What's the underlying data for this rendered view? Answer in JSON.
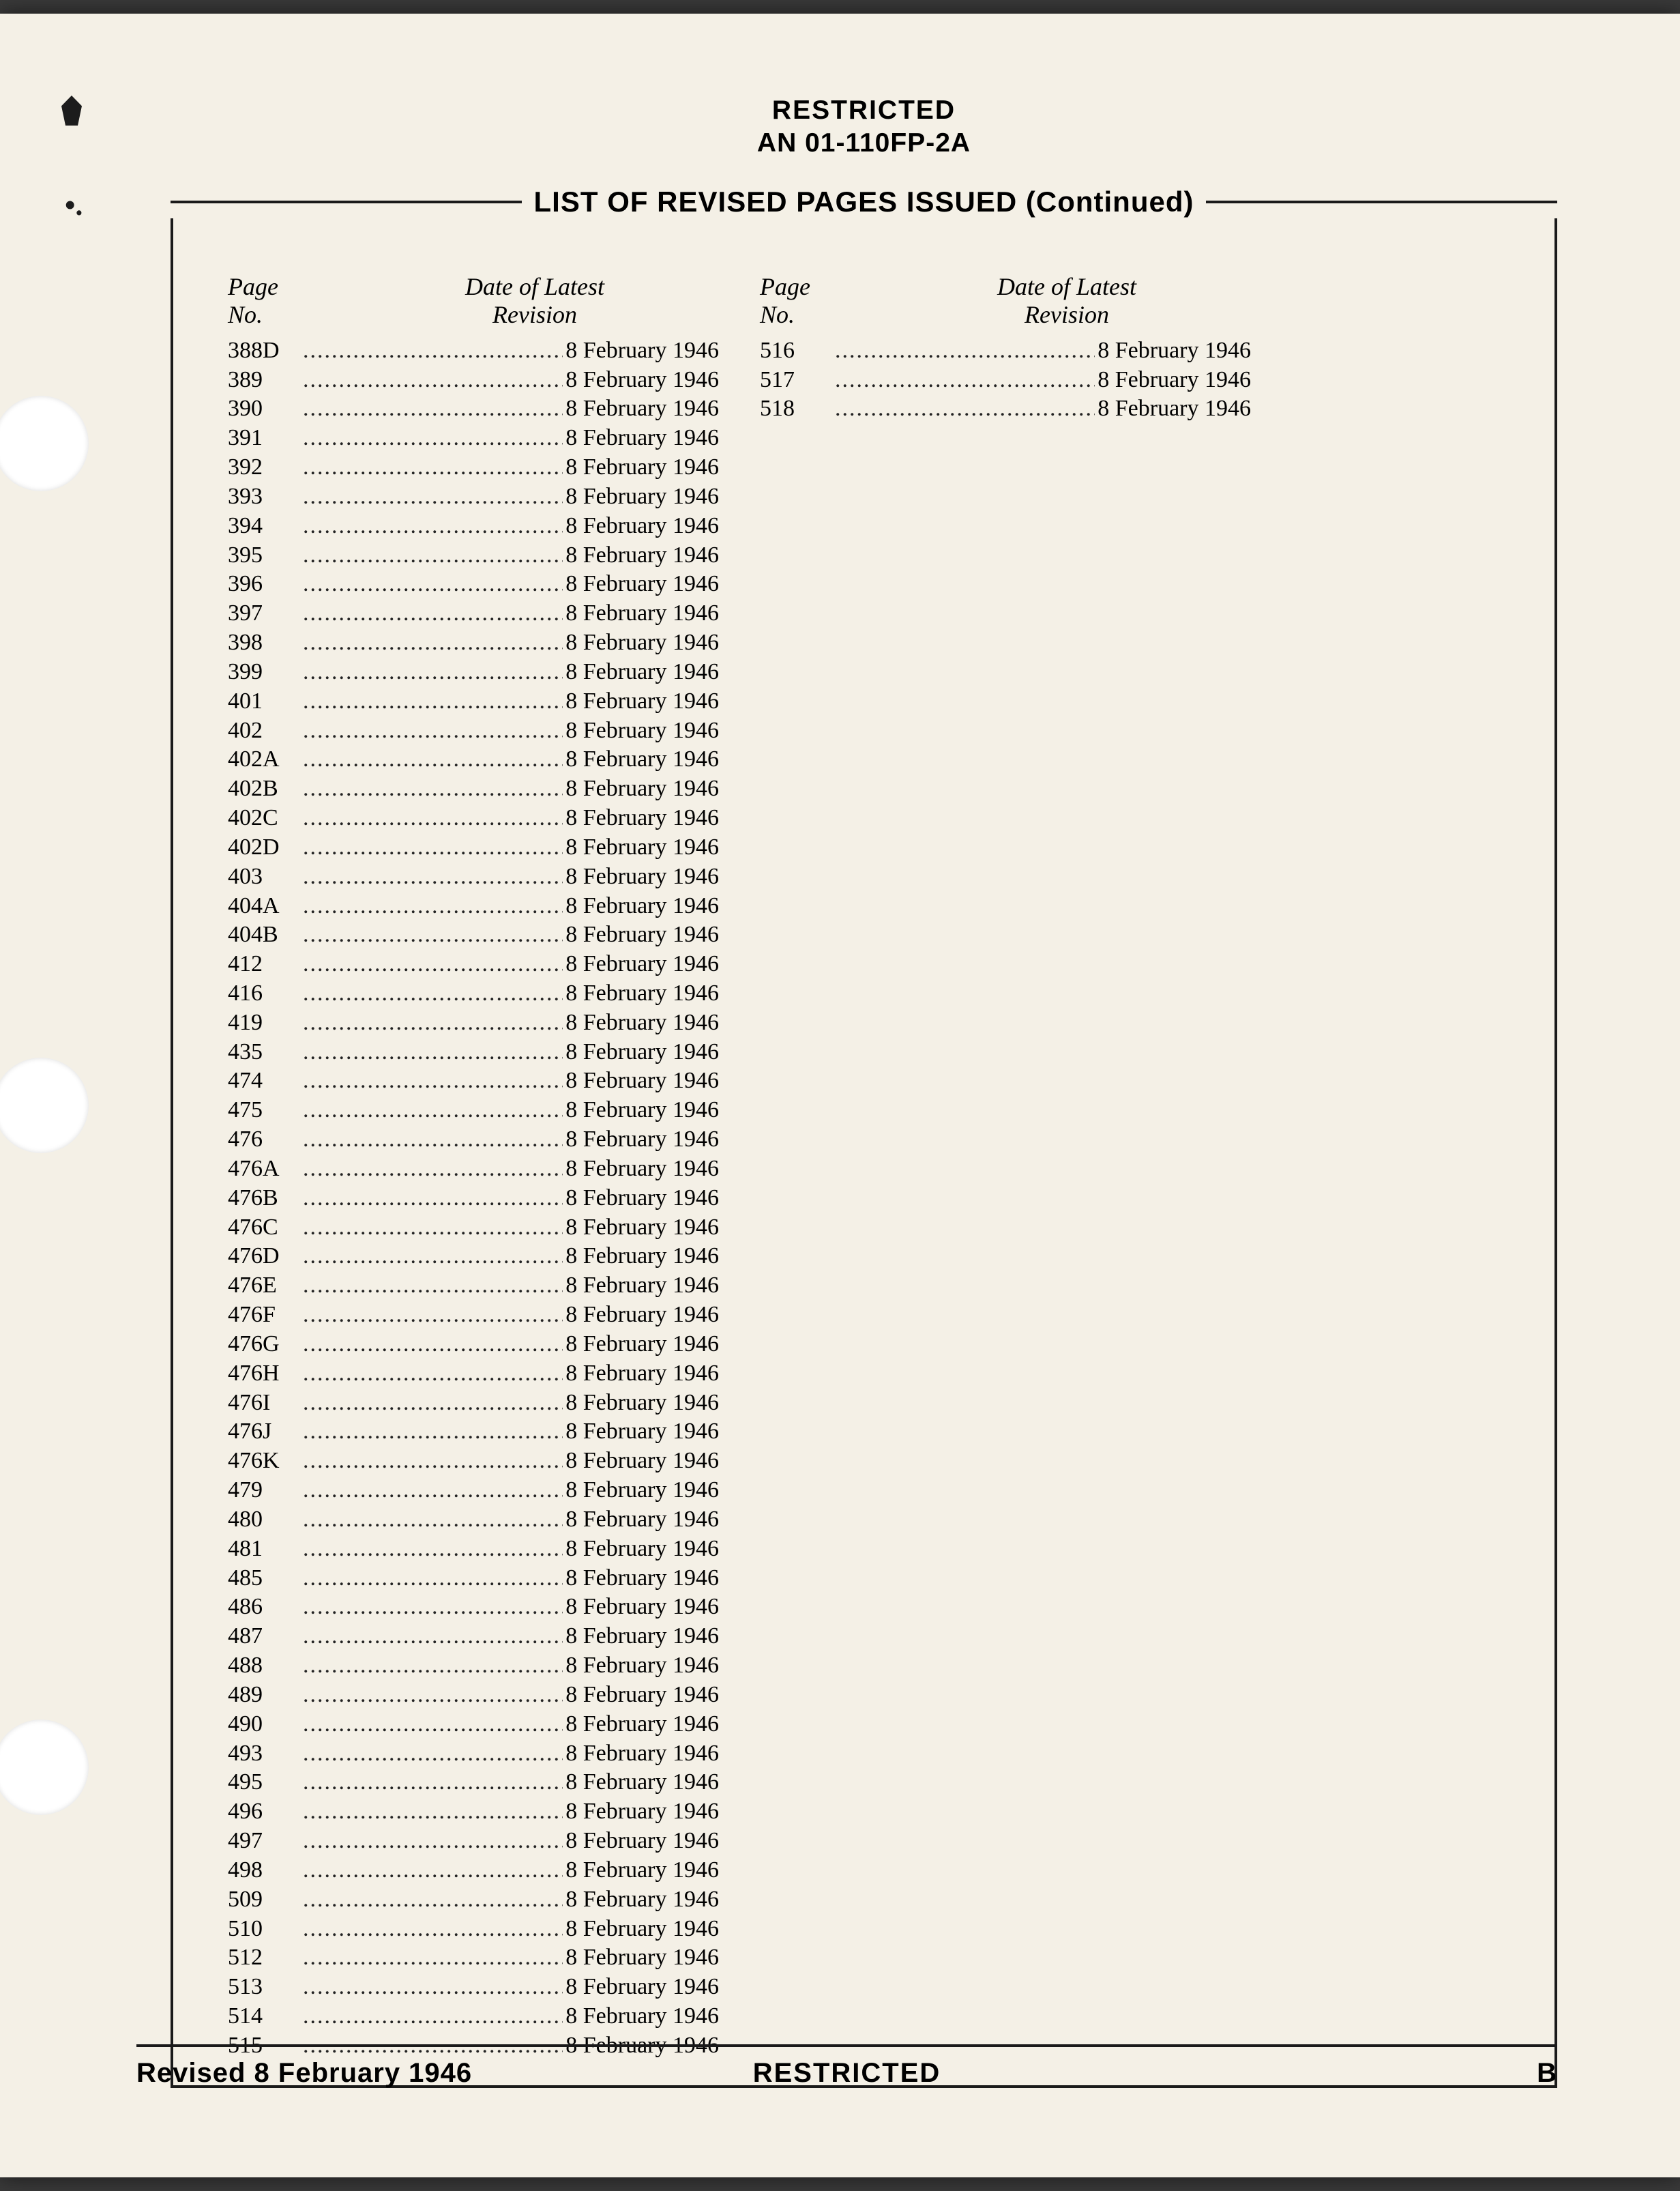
{
  "header": {
    "classification": "RESTRICTED",
    "doc_number": "AN 01-110FP-2A"
  },
  "title": "LIST OF REVISED PAGES ISSUED (Continued)",
  "column_headers": {
    "page_label_line1": "Page",
    "page_label_line2": "No.",
    "date_label_line1": "Date of Latest",
    "date_label_line2": "Revision"
  },
  "revision_date": "8 February 1946",
  "left_pages": [
    "388D",
    "389",
    "390",
    "391",
    "392",
    "393",
    "394",
    "395",
    "396",
    "397",
    "398",
    "399",
    "401",
    "402",
    "402A",
    "402B",
    "402C",
    "402D",
    "403",
    "404A",
    "404B",
    "412",
    "416",
    "419",
    "435",
    "474",
    "475",
    "476",
    "476A",
    "476B",
    "476C",
    "476D",
    "476E",
    "476F",
    "476G",
    "476H",
    "476I",
    "476J",
    "476K",
    "479",
    "480",
    "481",
    "485",
    "486",
    "487",
    "488",
    "489",
    "490",
    "493",
    "495",
    "496",
    "497",
    "498",
    "509",
    "510",
    "512",
    "513",
    "514",
    "515"
  ],
  "right_pages": [
    "516",
    "517",
    "518"
  ],
  "footer": {
    "left": "Revised 8 February 1946",
    "center": "RESTRICTED",
    "right": "B"
  },
  "colors": {
    "paper": "#f4f0e6",
    "ink": "#1a1a1a",
    "page_bg": "#3a3a3a"
  },
  "typography": {
    "body_font": "Times New Roman",
    "heading_font": "Arial",
    "body_size_pt": 34,
    "heading_size_pt": 42
  }
}
